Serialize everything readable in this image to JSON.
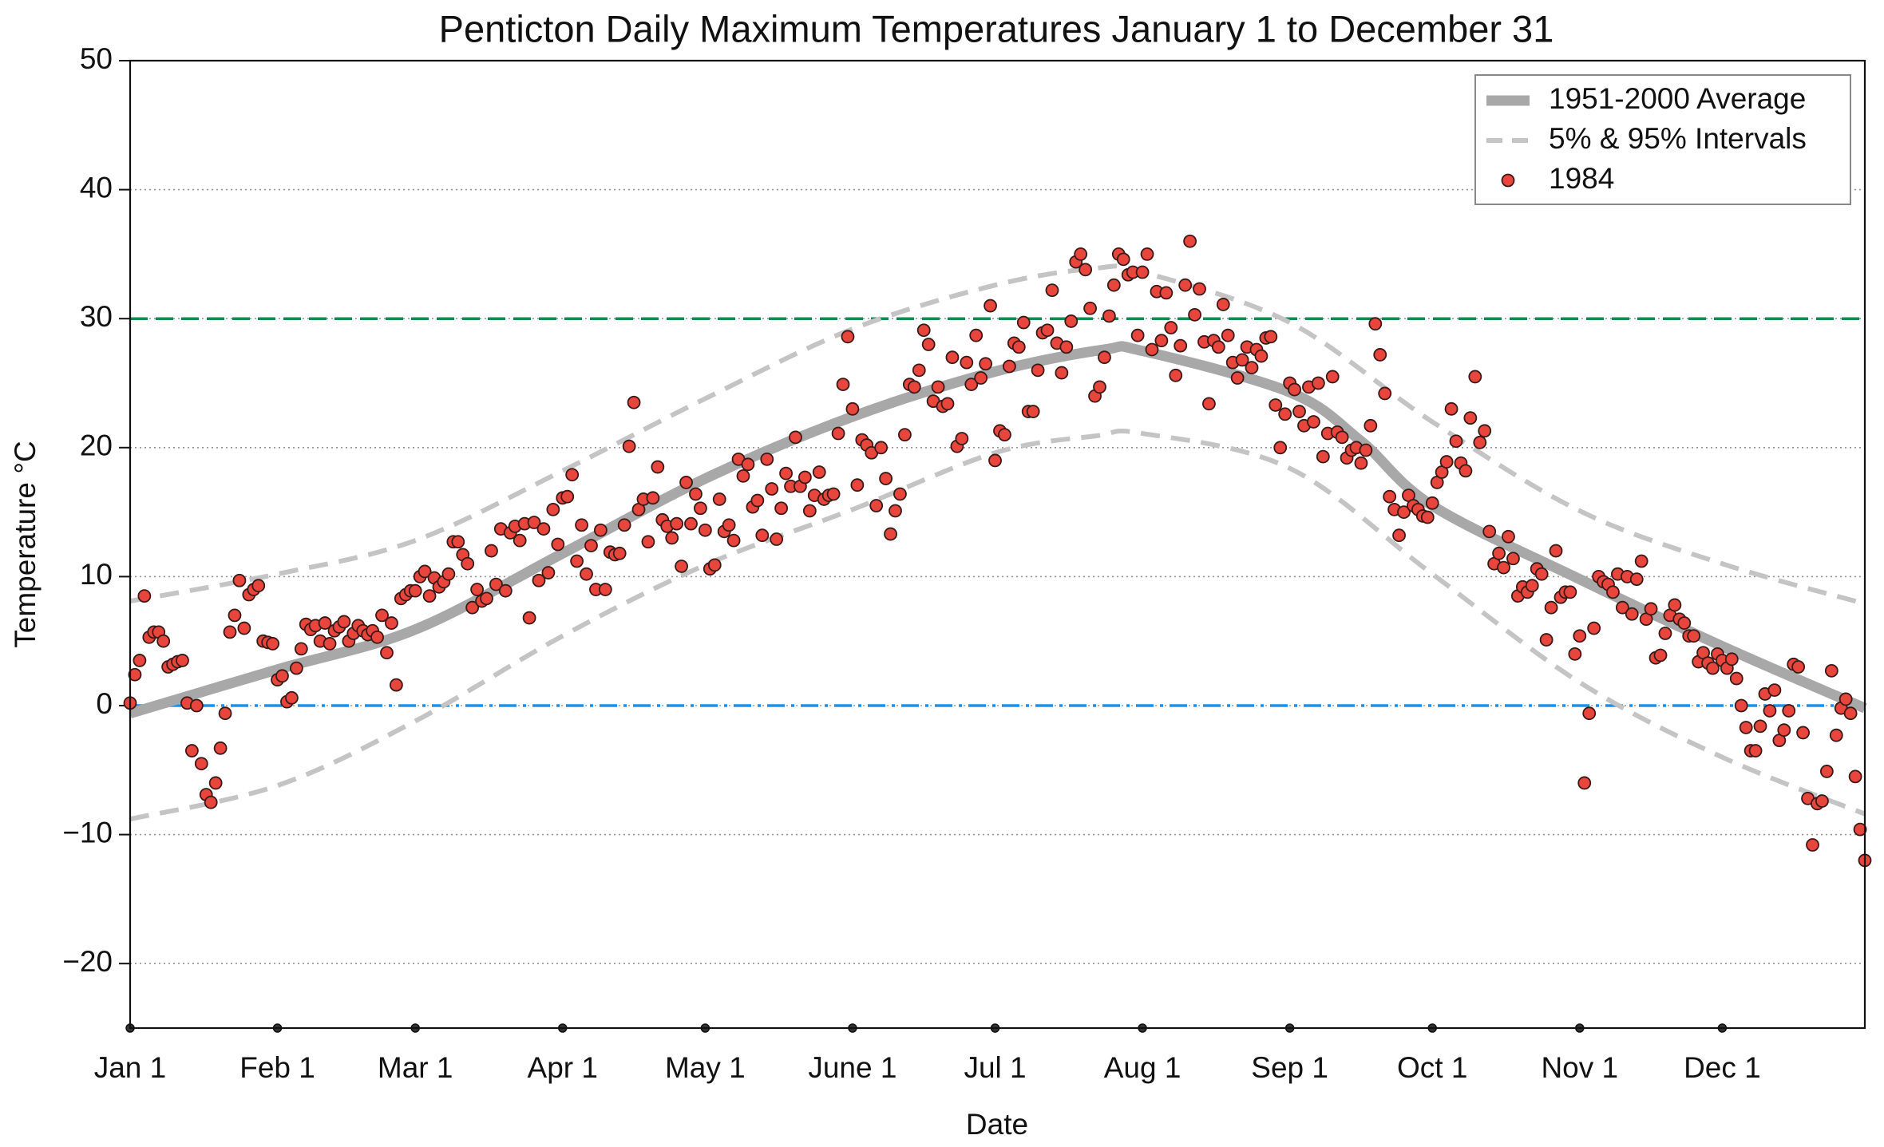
{
  "chart_data": {
    "type": "scatter",
    "title": "Penticton Daily Maximum Temperatures January 1 to December 31",
    "x_label": "Date",
    "y_label": "Temperature °C",
    "xlim": [
      1,
      366
    ],
    "ylim": [
      -25,
      50
    ],
    "xticks": [
      {
        "value": 1,
        "label": "Jan 1"
      },
      {
        "value": 32,
        "label": "Feb 1"
      },
      {
        "value": 61,
        "label": "Mar 1"
      },
      {
        "value": 92,
        "label": "Apr 1"
      },
      {
        "value": 122,
        "label": "May 1"
      },
      {
        "value": 153,
        "label": "June 1"
      },
      {
        "value": 183,
        "label": "Jul 1"
      },
      {
        "value": 214,
        "label": "Aug 1"
      },
      {
        "value": 245,
        "label": "Sep 1"
      },
      {
        "value": 275,
        "label": "Oct 1"
      },
      {
        "value": 306,
        "label": "Nov 1"
      },
      {
        "value": 336,
        "label": "Dec 1"
      }
    ],
    "yticks": [
      {
        "value": -20,
        "label": "−20"
      },
      {
        "value": -10,
        "label": "−10"
      },
      0,
      10,
      20,
      30,
      40,
      50
    ],
    "grid": true,
    "legend": "upper right",
    "hlines": [
      {
        "value": 30,
        "color": "#128a50",
        "dash": "dashed"
      },
      {
        "value": 0,
        "color": "#1e90e6",
        "dash": "dashdot"
      }
    ],
    "series": [
      {
        "name": "1951-2000 Average",
        "type": "line",
        "color": "#a8a8a8",
        "x": [
          1,
          32,
          61,
          92,
          122,
          153,
          183,
          206,
          214,
          245,
          260,
          275,
          306,
          336,
          366
        ],
        "values": [
          -0.6,
          2.8,
          5.9,
          11.8,
          17.6,
          22.4,
          25.9,
          27.6,
          27.5,
          24.3,
          20.5,
          15.5,
          9.8,
          4.6,
          -0.2
        ]
      },
      {
        "name": "5% & 95% Intervals",
        "type": "interval",
        "color": "#c4c4c4",
        "x": [
          1,
          32,
          61,
          92,
          122,
          153,
          183,
          204,
          214,
          245,
          275,
          306,
          336,
          366
        ],
        "upper": [
          8.1,
          10.2,
          12.8,
          18.2,
          23.8,
          29.2,
          32.6,
          33.9,
          33.6,
          29.7,
          22,
          15.1,
          11,
          7.9
        ],
        "lower": [
          -8.8,
          -6.2,
          -1.2,
          5.4,
          10.9,
          15.2,
          19.6,
          20.9,
          21.1,
          18.4,
          10.2,
          1.8,
          -4,
          -8.4
        ]
      },
      {
        "name": "1984",
        "type": "scatter",
        "color": "#e8453c",
        "x": [
          1,
          2,
          3,
          4,
          5,
          6,
          7,
          8,
          9,
          10,
          11,
          12,
          13,
          14,
          15,
          16,
          17,
          18,
          19,
          20,
          21,
          22,
          23,
          24,
          25,
          26,
          27,
          28,
          29,
          30,
          31,
          32,
          33,
          34,
          35,
          36,
          37,
          38,
          39,
          40,
          41,
          42,
          43,
          44,
          45,
          46,
          47,
          48,
          49,
          50,
          51,
          52,
          53,
          54,
          55,
          56,
          57,
          58,
          59,
          60,
          61,
          62,
          63,
          64,
          65,
          66,
          67,
          68,
          69,
          70,
          71,
          72,
          73,
          74,
          75,
          76,
          77,
          78,
          79,
          80,
          81,
          82,
          83,
          84,
          85,
          86,
          87,
          88,
          89,
          90,
          91,
          92,
          93,
          94,
          95,
          96,
          97,
          98,
          99,
          100,
          101,
          102,
          103,
          104,
          105,
          106,
          107,
          108,
          109,
          110,
          111,
          112,
          113,
          114,
          115,
          116,
          117,
          118,
          119,
          120,
          121,
          122,
          123,
          124,
          125,
          126,
          127,
          128,
          129,
          130,
          131,
          132,
          133,
          134,
          135,
          136,
          137,
          138,
          139,
          140,
          141,
          142,
          143,
          144,
          145,
          146,
          147,
          148,
          149,
          150,
          151,
          152,
          153,
          154,
          155,
          156,
          157,
          158,
          159,
          160,
          161,
          162,
          163,
          164,
          165,
          166,
          167,
          168,
          169,
          170,
          171,
          172,
          173,
          174,
          175,
          176,
          177,
          178,
          179,
          180,
          181,
          182,
          183,
          184,
          185,
          186,
          187,
          188,
          189,
          190,
          191,
          192,
          193,
          194,
          195,
          196,
          197,
          198,
          199,
          200,
          201,
          202,
          203,
          204,
          205,
          206,
          207,
          208,
          209,
          210,
          211,
          212,
          213,
          214,
          215,
          216,
          217,
          218,
          219,
          220,
          221,
          222,
          223,
          224,
          225,
          226,
          227,
          228,
          229,
          230,
          231,
          232,
          233,
          234,
          235,
          236,
          237,
          238,
          239,
          240,
          241,
          242,
          243,
          244,
          245,
          246,
          247,
          248,
          249,
          250,
          251,
          252,
          253,
          254,
          255,
          256,
          257,
          258,
          259,
          260,
          261,
          262,
          263,
          264,
          265,
          266,
          267,
          268,
          269,
          270,
          271,
          272,
          273,
          274,
          275,
          276,
          277,
          278,
          279,
          280,
          281,
          282,
          283,
          284,
          285,
          286,
          287,
          288,
          289,
          290,
          291,
          292,
          293,
          294,
          295,
          296,
          297,
          298,
          299,
          300,
          301,
          302,
          303,
          304,
          305,
          306,
          307,
          308,
          309,
          310,
          311,
          312,
          313,
          314,
          315,
          316,
          317,
          318,
          319,
          320,
          321,
          322,
          323,
          324,
          325,
          326,
          327,
          328,
          329,
          330,
          331,
          332,
          333,
          334,
          335,
          336,
          337,
          338,
          339,
          340,
          341,
          342,
          343,
          344,
          345,
          346,
          347,
          348,
          349,
          350,
          351,
          352,
          353,
          354,
          355,
          356,
          357,
          358,
          359,
          360,
          361,
          362,
          363,
          364,
          365,
          366
        ],
        "values": [
          0.2,
          2.4,
          3.5,
          8.5,
          5.3,
          5.7,
          5.7,
          5,
          3,
          3.2,
          3.4,
          3.5,
          0.2,
          -3.5,
          0,
          -4.5,
          -6.9,
          -7.5,
          -6,
          -3.3,
          -0.6,
          5.7,
          7,
          9.7,
          6,
          8.6,
          9,
          9.3,
          5,
          4.9,
          4.8,
          2,
          2.3,
          0.3,
          0.6,
          2.9,
          4.4,
          6.3,
          5.9,
          6.2,
          5,
          6.4,
          4.8,
          5.8,
          6.1,
          6.5,
          5,
          5.6,
          6.2,
          5.8,
          5.5,
          5.8,
          5.3,
          7,
          4.1,
          6.4,
          1.6,
          8.3,
          8.6,
          8.9,
          8.9,
          10,
          10.4,
          8.5,
          9.9,
          9.2,
          9.6,
          10.2,
          12.7,
          12.7,
          11.7,
          11,
          7.6,
          9,
          8.1,
          8.3,
          12,
          9.4,
          13.7,
          8.9,
          13.4,
          13.9,
          12.8,
          14.1,
          6.8,
          14.2,
          9.7,
          13.7,
          10.3,
          15.2,
          12.5,
          16.1,
          16.2,
          17.9,
          11.2,
          14,
          10.2,
          12.4,
          9,
          13.6,
          9,
          11.9,
          11.7,
          11.8,
          14,
          20.1,
          23.5,
          15.2,
          16,
          12.7,
          16.1,
          18.5,
          14.4,
          13.9,
          13,
          14.1,
          10.8,
          17.3,
          14.1,
          16.4,
          15.3,
          13.6,
          10.6,
          10.9,
          16,
          13.5,
          14,
          12.8,
          19.1,
          17.8,
          18.7,
          15.4,
          15.9,
          13.2,
          19.1,
          16.8,
          12.9,
          15.3,
          18,
          17,
          20.8,
          17,
          17.7,
          15.1,
          16.3,
          18.1,
          16,
          16.3,
          16.4,
          21.1,
          24.9,
          28.6,
          23,
          17.1,
          20.6,
          20.2,
          19.6,
          15.5,
          20,
          17.6,
          13.3,
          15.1,
          16.4,
          21,
          24.9,
          24.7,
          26,
          29.1,
          28,
          23.6,
          24.7,
          23.2,
          23.4,
          27,
          20.1,
          20.7,
          26.6,
          24.9,
          28.7,
          25.4,
          26.5,
          31,
          19,
          21.3,
          21,
          26.3,
          28.1,
          27.8,
          29.7,
          22.8,
          22.8,
          26,
          28.9,
          29.1,
          32.2,
          28.1,
          25.8,
          27.8,
          29.8,
          34.4,
          35,
          33.8,
          30.8,
          24,
          24.7,
          27,
          30.2,
          32.6,
          35,
          34.6,
          33.4,
          33.6,
          28.7,
          33.6,
          35,
          27.6,
          32.1,
          28.3,
          32,
          29.3,
          25.6,
          27.9,
          32.6,
          36,
          30.3,
          32.3,
          28.2,
          23.4,
          28.3,
          27.8,
          31.1,
          28.7,
          26.6,
          25.4,
          26.8,
          27.8,
          26.2,
          27.6,
          27.1,
          28.5,
          28.6,
          23.3,
          20,
          22.6,
          25,
          24.5,
          22.8,
          21.7,
          24.7,
          22,
          25,
          19.3,
          21.1,
          25.5,
          21.2,
          20.8,
          19.2,
          19.8,
          20,
          18.8,
          19.8,
          21.7,
          29.6,
          27.2,
          24.2,
          16.2,
          15.2,
          13.2,
          15,
          16.3,
          15.5,
          15.2,
          14.7,
          14.6,
          15.7,
          17.3,
          18.1,
          18.9,
          23,
          20.5,
          18.8,
          18.2,
          22.3,
          25.5,
          20.4,
          21.3,
          13.5,
          11,
          11.8,
          10.7,
          13.1,
          11.4,
          8.5,
          9.2,
          8.8,
          9.3,
          10.6,
          10.2,
          5.1,
          7.6,
          12,
          8.4,
          8.8,
          8.8,
          4,
          5.4,
          -6,
          -0.6,
          6,
          10,
          9.6,
          9.4,
          8.8,
          10.2,
          7.6,
          10,
          7.1,
          9.8,
          11.2,
          6.7,
          7.5,
          3.7,
          3.9,
          5.6,
          7,
          7.8,
          6.7,
          6.4,
          5.4,
          5.4,
          3.4,
          4.1,
          3.3,
          2.9,
          4,
          3.5,
          2.9,
          3.6,
          2.1,
          0,
          -1.7,
          -3.5,
          -3.5,
          -1.6,
          0.9,
          -0.4,
          1.2,
          -2.7,
          -1.9,
          -0.4,
          3.2,
          3,
          -2.1,
          -7.2,
          -10.8,
          -7.6,
          -7.4,
          -5.1,
          2.7,
          -2.3,
          -0.2,
          0.5,
          -0.6,
          -5.5,
          -9.6,
          -12
        ]
      }
    ]
  }
}
